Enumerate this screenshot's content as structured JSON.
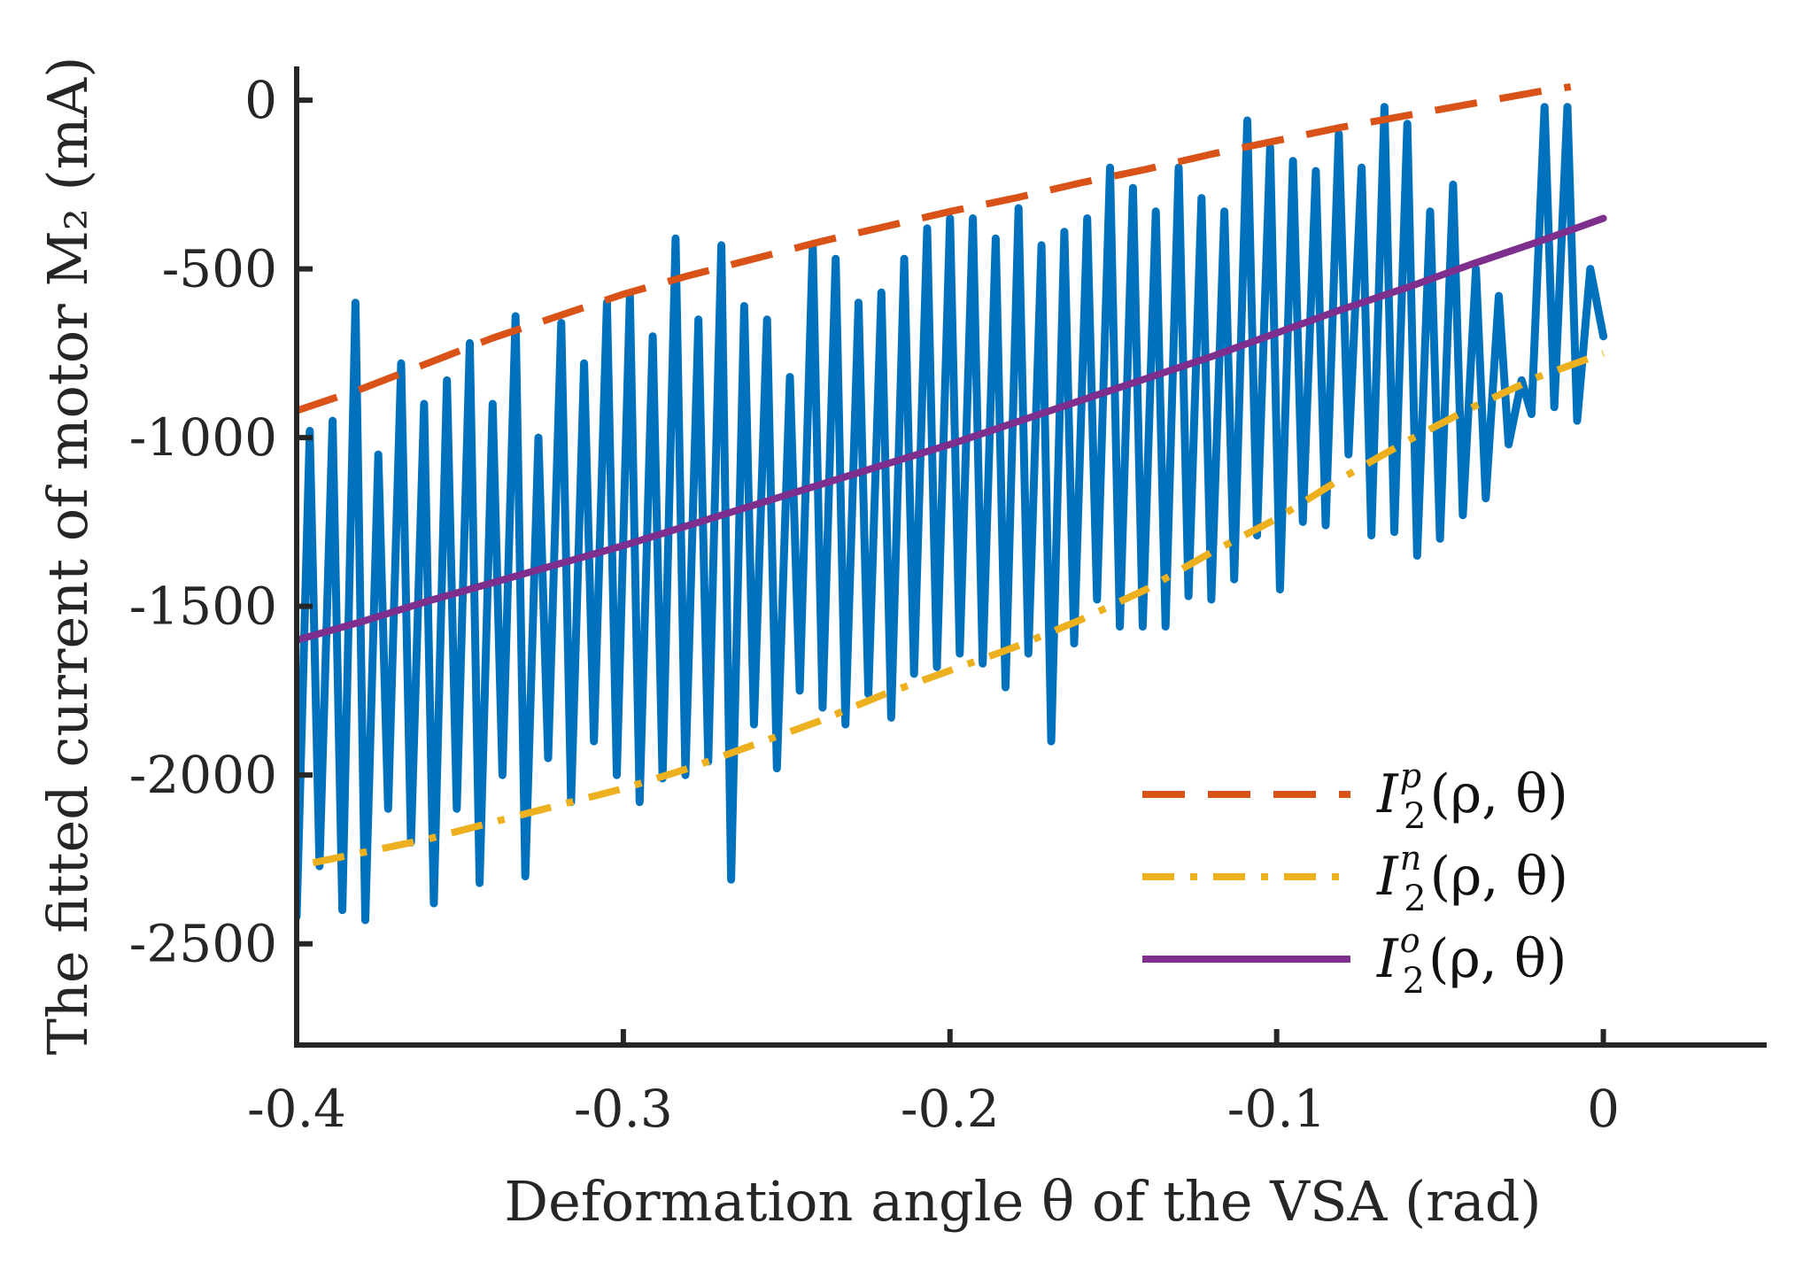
{
  "colors": {
    "measured": "#0072BD",
    "positive": "#D95319",
    "negative": "#EDB120",
    "optimal": "#7E2F8E",
    "axis": "#262626"
  },
  "chart_data": {
    "type": "line",
    "xlabel": "Deformation angle θ of the VSA (rad)",
    "ylabel": "The fitted current of motor M₂ (mA)",
    "xlim": [
      -0.4,
      0.05
    ],
    "ylim": [
      -2800,
      100
    ],
    "x_ticks": [
      -0.4,
      -0.3,
      -0.2,
      -0.1,
      0
    ],
    "x_tick_labels": [
      "-0.4",
      "-0.3",
      "-0.2",
      "-0.1",
      "0"
    ],
    "y_ticks": [
      0,
      -500,
      -1000,
      -1500,
      -2000,
      -2500
    ],
    "y_tick_labels": [
      "0",
      "-500",
      "-1000",
      "-1500",
      "-2000",
      "-2500"
    ],
    "legend_position": "bottom-right",
    "series": [
      {
        "name": "measured",
        "style": "solid",
        "color_key": "measured",
        "x": [
          -0.4,
          -0.396,
          -0.393,
          -0.389,
          -0.386,
          -0.382,
          -0.379,
          -0.375,
          -0.372,
          -0.368,
          -0.365,
          -0.361,
          -0.358,
          -0.354,
          -0.351,
          -0.347,
          -0.344,
          -0.34,
          -0.337,
          -0.333,
          -0.33,
          -0.326,
          -0.323,
          -0.319,
          -0.316,
          -0.312,
          -0.309,
          -0.305,
          -0.302,
          -0.298,
          -0.295,
          -0.291,
          -0.288,
          -0.284,
          -0.281,
          -0.277,
          -0.274,
          -0.27,
          -0.267,
          -0.263,
          -0.26,
          -0.256,
          -0.253,
          -0.249,
          -0.246,
          -0.242,
          -0.239,
          -0.235,
          -0.232,
          -0.228,
          -0.225,
          -0.221,
          -0.218,
          -0.214,
          -0.211,
          -0.207,
          -0.204,
          -0.2,
          -0.197,
          -0.193,
          -0.19,
          -0.186,
          -0.183,
          -0.179,
          -0.176,
          -0.172,
          -0.169,
          -0.165,
          -0.162,
          -0.158,
          -0.155,
          -0.151,
          -0.148,
          -0.144,
          -0.141,
          -0.137,
          -0.134,
          -0.13,
          -0.127,
          -0.123,
          -0.12,
          -0.116,
          -0.113,
          -0.109,
          -0.106,
          -0.102,
          -0.099,
          -0.095,
          -0.092,
          -0.088,
          -0.085,
          -0.081,
          -0.078,
          -0.074,
          -0.071,
          -0.067,
          -0.064,
          -0.06,
          -0.057,
          -0.053,
          -0.05,
          -0.046,
          -0.043,
          -0.039,
          -0.036,
          -0.032,
          -0.029,
          -0.025,
          -0.022,
          -0.018,
          -0.015,
          -0.011,
          -0.008,
          -0.004,
          0.0
        ],
        "y": [
          -2420,
          -980,
          -2270,
          -950,
          -2400,
          -600,
          -2430,
          -1050,
          -2100,
          -780,
          -2200,
          -900,
          -2380,
          -830,
          -2100,
          -720,
          -2320,
          -900,
          -2000,
          -640,
          -2300,
          -1000,
          -1950,
          -660,
          -2080,
          -780,
          -1900,
          -600,
          -2000,
          -580,
          -2080,
          -700,
          -2010,
          -410,
          -2000,
          -650,
          -1960,
          -430,
          -2310,
          -610,
          -1850,
          -650,
          -1980,
          -820,
          -1750,
          -430,
          -1800,
          -470,
          -1850,
          -600,
          -1760,
          -570,
          -1830,
          -470,
          -1700,
          -380,
          -1680,
          -350,
          -1640,
          -350,
          -1670,
          -410,
          -1740,
          -320,
          -1640,
          -430,
          -1900,
          -390,
          -1610,
          -350,
          -1480,
          -200,
          -1560,
          -260,
          -1560,
          -330,
          -1560,
          -200,
          -1470,
          -290,
          -1480,
          -330,
          -1420,
          -60,
          -1290,
          -140,
          -1450,
          -180,
          -1250,
          -210,
          -1260,
          -100,
          -1050,
          -200,
          -1290,
          -20,
          -1280,
          -70,
          -1350,
          -330,
          -1300,
          -250,
          -1230,
          -500,
          -1180,
          -580,
          -1020,
          -830,
          -930,
          -20,
          -910,
          -20,
          -950,
          -500,
          -700
        ]
      },
      {
        "name": "I_2^p(ρ,θ)",
        "style": "dashed",
        "color_key": "positive",
        "x": [
          -0.4,
          -0.38,
          -0.36,
          -0.34,
          -0.32,
          -0.3,
          -0.28,
          -0.26,
          -0.24,
          -0.22,
          -0.2,
          -0.18,
          -0.16,
          -0.14,
          -0.12,
          -0.1,
          -0.08,
          -0.06,
          -0.04,
          -0.02,
          -0.01
        ],
        "y": [
          -920,
          -855,
          -780,
          -705,
          -640,
          -575,
          -520,
          -470,
          -420,
          -375,
          -330,
          -290,
          -245,
          -205,
          -160,
          -120,
          -80,
          -45,
          -10,
          25,
          40
        ]
      },
      {
        "name": "I_2^n(ρ,θ)",
        "style": "dashdot",
        "color_key": "negative",
        "x": [
          -0.395,
          -0.38,
          -0.36,
          -0.34,
          -0.32,
          -0.3,
          -0.28,
          -0.26,
          -0.24,
          -0.22,
          -0.2,
          -0.18,
          -0.16,
          -0.14,
          -0.12,
          -0.1,
          -0.08,
          -0.06,
          -0.04,
          -0.02,
          0.0
        ],
        "y": [
          -2260,
          -2230,
          -2190,
          -2140,
          -2090,
          -2040,
          -1980,
          -1910,
          -1840,
          -1760,
          -1690,
          -1620,
          -1540,
          -1450,
          -1340,
          -1240,
          -1120,
          -1010,
          -910,
          -820,
          -750
        ]
      },
      {
        "name": "I_2^o(ρ,θ)",
        "style": "solid",
        "color_key": "optimal",
        "x": [
          -0.4,
          -0.38,
          -0.36,
          -0.34,
          -0.32,
          -0.3,
          -0.28,
          -0.26,
          -0.24,
          -0.22,
          -0.2,
          -0.18,
          -0.16,
          -0.14,
          -0.12,
          -0.1,
          -0.08,
          -0.06,
          -0.04,
          -0.02,
          0.0
        ],
        "y": [
          -1600,
          -1545,
          -1485,
          -1430,
          -1375,
          -1320,
          -1260,
          -1200,
          -1140,
          -1080,
          -1020,
          -955,
          -890,
          -825,
          -760,
          -690,
          -620,
          -555,
          -485,
          -420,
          -350
        ]
      }
    ],
    "legend": [
      {
        "base": "I",
        "sub": "2",
        "sup": "p",
        "args": "(ρ, θ)",
        "style": "dashed",
        "color_key": "positive"
      },
      {
        "base": "I",
        "sub": "2",
        "sup": "n",
        "args": "(ρ, θ)",
        "style": "dashdot",
        "color_key": "negative"
      },
      {
        "base": "I",
        "sub": "2",
        "sup": "o",
        "args": "(ρ, θ)",
        "style": "solid",
        "color_key": "optimal"
      }
    ]
  }
}
